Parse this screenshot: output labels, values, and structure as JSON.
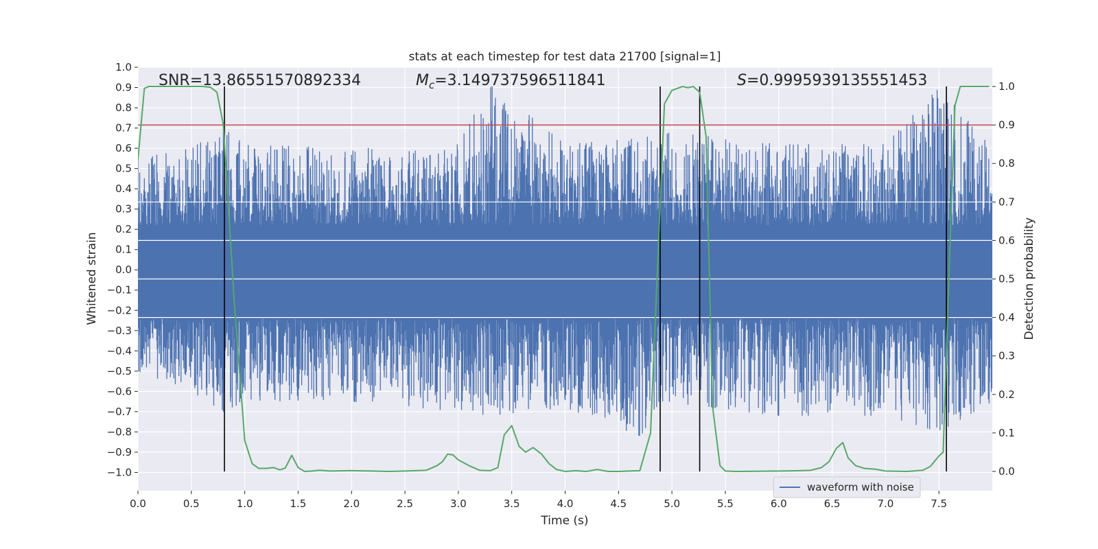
{
  "chart_data": {
    "type": "line",
    "title": "stats at each timestep for test data 21700 [signal=1]",
    "xlabel": "Time (s)",
    "ylabel_left": "Whitened strain",
    "ylabel_right": "Detection probability",
    "xlim": [
      0.0,
      8.0
    ],
    "ylim_left": [
      -1.09,
      1.0
    ],
    "ylim_right": [
      -0.05,
      1.05
    ],
    "x_ticks": [
      "0.0",
      "0.5",
      "1.0",
      "1.5",
      "2.0",
      "2.5",
      "3.0",
      "3.5",
      "4.0",
      "4.5",
      "5.0",
      "5.5",
      "6.0",
      "6.5",
      "7.0",
      "7.5"
    ],
    "y_ticks_left": [
      "1.0",
      "0.9",
      "0.8",
      "0.7",
      "0.6",
      "0.5",
      "0.4",
      "0.3",
      "0.2",
      "0.1",
      "0.0",
      "−0.1",
      "−0.2",
      "−0.3",
      "−0.4",
      "−0.5",
      "−0.6",
      "−0.7",
      "−0.8",
      "−0.9",
      "−1.0"
    ],
    "y_ticks_right": [
      "1.0",
      "0.9",
      "0.8",
      "0.7",
      "0.6",
      "0.5",
      "0.4",
      "0.3",
      "0.2",
      "0.1",
      "0.0"
    ],
    "grid": true,
    "legend": {
      "entries": [
        "waveform with noise"
      ],
      "placement": "lower-right"
    },
    "annotations": {
      "snr": "SNR=13.86551570892334",
      "mc_sym": "M",
      "mc_sub": "c",
      "mc_val": "=3.149737596511841",
      "s_sym": "S",
      "s_val": "=0.9995939135551453"
    },
    "threshold_probability": 0.9,
    "event_lines_s": [
      0.81,
      4.89,
      5.26,
      7.57
    ],
    "waveform_envelope": {
      "x": [
        0.0,
        0.5,
        0.8,
        1.0,
        2.0,
        3.0,
        3.3,
        4.0,
        4.7,
        5.0,
        6.0,
        7.0,
        7.5,
        8.0
      ],
      "y_max": [
        0.55,
        0.6,
        0.7,
        0.62,
        0.6,
        0.62,
        0.92,
        0.62,
        0.65,
        0.68,
        0.62,
        0.62,
        0.9,
        0.6
      ],
      "y_min": [
        -0.5,
        -0.6,
        -0.7,
        -0.65,
        -0.65,
        -0.7,
        -0.72,
        -0.68,
        -0.82,
        -0.66,
        -0.72,
        -0.72,
        -0.8,
        -0.65
      ]
    },
    "series": [
      {
        "name": "detection probability",
        "color": "#55a868",
        "x": [
          0.0,
          0.06,
          0.1,
          0.2,
          0.3,
          0.4,
          0.5,
          0.6,
          0.68,
          0.74,
          0.8,
          0.9,
          1.0,
          1.07,
          1.13,
          1.2,
          1.27,
          1.33,
          1.38,
          1.44,
          1.5,
          1.56,
          1.63,
          1.7,
          1.8,
          2.0,
          2.2,
          2.35,
          2.5,
          2.7,
          2.8,
          2.85,
          2.9,
          2.95,
          3.0,
          3.1,
          3.2,
          3.3,
          3.37,
          3.43,
          3.5,
          3.57,
          3.63,
          3.7,
          3.78,
          3.85,
          3.92,
          4.0,
          4.1,
          4.2,
          4.3,
          4.4,
          4.5,
          4.6,
          4.7,
          4.8,
          4.9,
          4.93,
          5.0,
          5.1,
          5.15,
          5.2,
          5.26,
          5.32,
          5.38,
          5.45,
          5.5,
          5.6,
          6.0,
          6.2,
          6.3,
          6.4,
          6.47,
          6.54,
          6.6,
          6.65,
          6.72,
          6.8,
          6.9,
          7.0,
          7.2,
          7.35,
          7.42,
          7.5,
          7.54,
          7.6,
          7.65,
          7.7,
          7.8,
          7.9,
          7.97
        ],
        "y": [
          0.81,
          0.995,
          1.0,
          1.0,
          1.0,
          1.0,
          1.0,
          1.0,
          0.998,
          0.985,
          0.9,
          0.45,
          0.08,
          0.02,
          0.008,
          0.008,
          0.01,
          0.004,
          0.009,
          0.042,
          0.01,
          0.0,
          0.001,
          0.003,
          0.001,
          0.002,
          0.001,
          0.0,
          0.001,
          0.003,
          0.015,
          0.025,
          0.045,
          0.043,
          0.03,
          0.015,
          0.003,
          0.002,
          0.01,
          0.095,
          0.119,
          0.065,
          0.05,
          0.062,
          0.045,
          0.02,
          0.005,
          0.0,
          0.002,
          0.0,
          0.005,
          0.0,
          0.0,
          0.001,
          0.002,
          0.1,
          0.76,
          0.955,
          0.99,
          1.0,
          0.997,
          1.0,
          0.985,
          0.87,
          0.17,
          0.015,
          0.001,
          0.0,
          0.001,
          0.002,
          0.003,
          0.01,
          0.025,
          0.06,
          0.075,
          0.035,
          0.015,
          0.008,
          0.006,
          0.001,
          0.0,
          0.003,
          0.013,
          0.04,
          0.05,
          0.56,
          0.95,
          1.0,
          1.0,
          1.0,
          1.0
        ]
      },
      {
        "name": "threshold",
        "color": "#c44e52",
        "x": [
          0.0,
          8.0
        ],
        "y": [
          0.9,
          0.9
        ]
      }
    ]
  },
  "colors": {
    "plot_bg": "#eaeaf2",
    "grid": "#ffffff",
    "waveform": "#4c72b0",
    "probability": "#55a868",
    "threshold": "#c44e52",
    "event_line": "#000000"
  }
}
